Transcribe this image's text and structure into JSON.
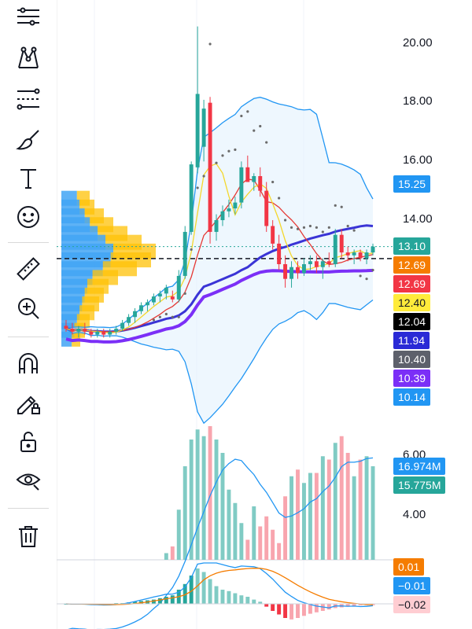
{
  "toolbar": {
    "tools": [
      {
        "name": "lines-tool",
        "icon": "trend-lines-icon"
      },
      {
        "name": "pattern-tool",
        "icon": "xabcd-pattern-icon"
      },
      {
        "name": "fib-tool",
        "icon": "fib-retracement-icon"
      },
      {
        "name": "brush-tool",
        "icon": "brush-icon"
      },
      {
        "name": "text-tool",
        "icon": "text-icon",
        "glyph": "T"
      },
      {
        "name": "emoji-tool",
        "icon": "smiley-icon"
      },
      {
        "name": "measure-tool",
        "icon": "ruler-icon"
      },
      {
        "name": "zoom-tool",
        "icon": "zoom-in-icon"
      },
      {
        "name": "magnet-tool",
        "icon": "magnet-icon"
      },
      {
        "name": "lock-drawings-tool",
        "icon": "pencil-lock-icon"
      },
      {
        "name": "lock-all-tool",
        "icon": "unlock-icon"
      },
      {
        "name": "hide-drawings-tool",
        "icon": "eye-icon"
      },
      {
        "name": "delete-drawings-tool",
        "icon": "trash-icon"
      }
    ]
  },
  "price_axis": {
    "ticks": [
      "20.00",
      "18.00",
      "16.00",
      "14.00"
    ],
    "tick_values": [
      20,
      18,
      16,
      14
    ],
    "price_range": [
      11.0,
      20.0
    ]
  },
  "price_labels": [
    {
      "text": "15.25",
      "value": 15.25,
      "bg": "#2196f3",
      "fg": "#ffffff"
    },
    {
      "text": "13.10",
      "value": 13.1,
      "bg": "#26a69a",
      "fg": "#ffffff"
    },
    {
      "text": "12.69",
      "value": 12.69,
      "bg": "#f57c00",
      "fg": "#ffffff"
    },
    {
      "text": "12.69",
      "value": 12.69,
      "bg": "#f23645",
      "fg": "#ffffff"
    },
    {
      "text": "12.40",
      "value": 12.4,
      "bg": "#ffeb3b",
      "fg": "#131722"
    },
    {
      "text": "12.04",
      "value": 12.04,
      "bg": "#000000",
      "fg": "#ffffff"
    },
    {
      "text": "11.94",
      "value": 11.94,
      "bg": "#2a2ad6",
      "fg": "#ffffff"
    },
    {
      "text": "10.40",
      "value": 10.4,
      "bg": "#5d606b",
      "fg": "#ffffff"
    },
    {
      "text": "10.39",
      "value": 10.39,
      "bg": "#7b2ff7",
      "fg": "#ffffff"
    },
    {
      "text": "10.14",
      "value": 10.14,
      "bg": "#2196f3",
      "fg": "#ffffff"
    }
  ],
  "volume_axis": {
    "ticks": [
      "6.00",
      "4.00"
    ],
    "labels": [
      {
        "text": "16.974M",
        "bg": "#2196f3"
      },
      {
        "text": "15.775M",
        "bg": "#26a69a"
      }
    ]
  },
  "macd": {
    "labels": [
      {
        "text": "0.01",
        "bg": "#f57c00",
        "fg": "#ffffff"
      },
      {
        "text": "−0.01",
        "bg": "#2196f3",
        "fg": "#ffffff"
      },
      {
        "text": "−0.02",
        "bg": "#ffcdd2",
        "fg": "#131722"
      }
    ]
  },
  "colors": {
    "up": "#26a69a",
    "down": "#f23645",
    "ma_fast": "#f4d72c",
    "ma_mid": "#e53935",
    "ma_slow": "#3a34d6",
    "ma_long": "#7b2ff7",
    "bollinger": "#2196f3",
    "sar": "#6b6b6b"
  },
  "chart_data": {
    "type": "candlestick",
    "candles": [
      [
        10.4,
        10.6,
        10.2,
        10.3
      ],
      [
        10.3,
        10.5,
        10.1,
        10.2
      ],
      [
        10.2,
        10.4,
        10.0,
        10.3
      ],
      [
        10.3,
        10.5,
        10.1,
        10.2
      ],
      [
        10.2,
        10.3,
        10.0,
        10.1
      ],
      [
        10.1,
        10.3,
        10.0,
        10.2
      ],
      [
        10.2,
        10.3,
        10.0,
        10.1
      ],
      [
        10.1,
        10.3,
        10.0,
        10.2
      ],
      [
        10.2,
        10.4,
        10.1,
        10.3
      ],
      [
        10.3,
        10.6,
        10.2,
        10.5
      ],
      [
        10.5,
        10.8,
        10.4,
        10.7
      ],
      [
        10.7,
        11.0,
        10.5,
        10.9
      ],
      [
        10.9,
        11.2,
        10.8,
        11.1
      ],
      [
        11.1,
        11.3,
        10.9,
        11.2
      ],
      [
        11.2,
        11.5,
        11.1,
        11.4
      ],
      [
        11.4,
        11.6,
        11.2,
        11.5
      ],
      [
        11.5,
        11.8,
        11.3,
        11.7
      ],
      [
        11.4,
        11.6,
        11.2,
        11.3
      ],
      [
        11.3,
        12.3,
        11.2,
        12.1
      ],
      [
        12.1,
        13.8,
        12.0,
        13.6
      ],
      [
        13.6,
        16.0,
        13.5,
        15.9
      ],
      [
        15.8,
        20.6,
        15.6,
        18.3
      ],
      [
        16.5,
        18.1,
        16.0,
        17.8
      ],
      [
        18.0,
        18.2,
        13.2,
        13.6
      ],
      [
        13.6,
        14.2,
        13.3,
        14.0
      ],
      [
        14.0,
        14.5,
        13.8,
        14.3
      ],
      [
        14.3,
        14.7,
        14.1,
        14.4
      ],
      [
        14.4,
        14.8,
        14.2,
        14.6
      ],
      [
        14.6,
        16.0,
        14.4,
        15.8
      ],
      [
        15.8,
        16.2,
        15.4,
        15.3
      ],
      [
        15.3,
        15.6,
        15.0,
        15.5
      ],
      [
        15.5,
        15.8,
        14.8,
        15.0
      ],
      [
        15.0,
        15.3,
        13.6,
        13.8
      ],
      [
        13.8,
        14.0,
        13.0,
        13.2
      ],
      [
        13.2,
        13.5,
        12.3,
        12.5
      ],
      [
        12.5,
        12.8,
        11.7,
        12.0
      ],
      [
        12.0,
        12.6,
        11.7,
        12.4
      ],
      [
        12.4,
        12.6,
        12.0,
        12.2
      ],
      [
        12.2,
        12.7,
        12.1,
        12.5
      ],
      [
        12.5,
        12.8,
        12.3,
        12.6
      ],
      [
        12.6,
        12.8,
        12.2,
        12.4
      ],
      [
        12.4,
        12.7,
        12.0,
        12.6
      ],
      [
        12.6,
        12.9,
        12.4,
        12.5
      ],
      [
        12.5,
        13.7,
        12.4,
        13.5
      ],
      [
        13.5,
        13.7,
        12.7,
        12.9
      ],
      [
        12.9,
        13.1,
        12.6,
        12.8
      ],
      [
        12.8,
        13.0,
        12.5,
        12.9
      ],
      [
        12.9,
        13.0,
        12.6,
        12.7
      ],
      [
        12.7,
        13.0,
        12.5,
        12.9
      ],
      [
        12.9,
        13.2,
        12.8,
        13.1
      ]
    ],
    "volume": [
      0.9,
      1.0,
      0.9,
      0.9,
      0.8,
      1.0,
      0.9,
      1.0,
      1.1,
      1.4,
      1.6,
      1.8,
      1.9,
      2.2,
      2.5,
      2.6,
      3.2,
      3.4,
      4.5,
      5.8,
      6.6,
      6.9,
      6.7,
      7.0,
      6.6,
      6.2,
      5.1,
      4.7,
      4.1,
      3.6,
      4.6,
      4.0,
      4.3,
      3.9,
      3.5,
      4.9,
      5.5,
      5.7,
      5.3,
      5.6,
      5.6,
      6.1,
      6.0,
      6.5,
      6.7,
      6.2,
      5.5,
      6.0,
      6.1,
      5.8
    ],
    "volume_range": [
      3.0,
      7.4
    ],
    "macd_hist": [
      0,
      0,
      -0.01,
      -0.01,
      -0.01,
      -0.01,
      0,
      0,
      0.01,
      0.01,
      0.02,
      0.03,
      0.04,
      0.05,
      0.06,
      0.08,
      0.1,
      0.12,
      0.2,
      0.28,
      0.4,
      0.5,
      0.45,
      0.35,
      0.25,
      0.2,
      0.18,
      0.15,
      0.12,
      0.1,
      0.06,
      0.03,
      -0.04,
      -0.1,
      -0.15,
      -0.2,
      -0.22,
      -0.2,
      -0.17,
      -0.14,
      -0.12,
      -0.1,
      -0.08,
      -0.06,
      -0.05,
      -0.04,
      -0.03,
      -0.02,
      -0.02,
      -0.02
    ],
    "ylabel": "",
    "xlabel": ""
  }
}
